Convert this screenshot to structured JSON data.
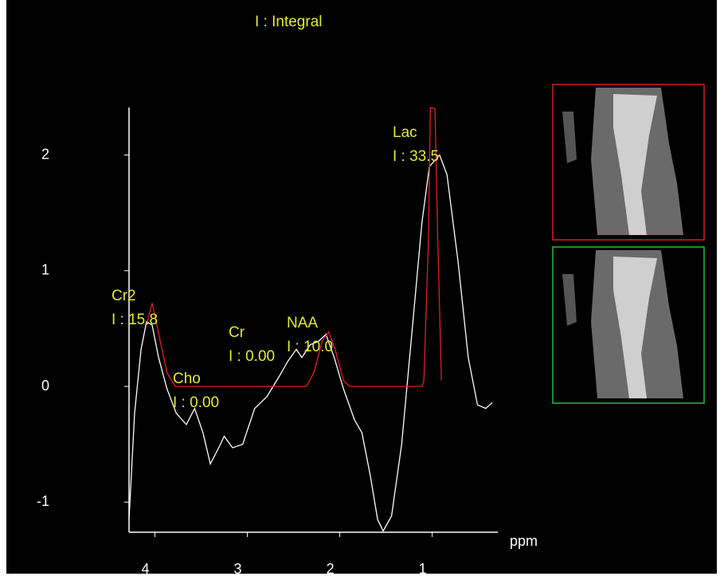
{
  "chart_data": {
    "type": "line",
    "title": "I : Integral",
    "x_label": "ppm",
    "xlim": [
      4.28,
      0.29
    ],
    "ylim": [
      -1.26,
      2.41
    ],
    "xticks": [
      4,
      3,
      2,
      1
    ],
    "yticks": [
      -1,
      0,
      1,
      2
    ],
    "series": [
      {
        "color": "#ffffff",
        "x": [
          4.28,
          4.22,
          4.15,
          4.09,
          4.03,
          3.96,
          3.87,
          3.77,
          3.66,
          3.57,
          3.48,
          3.4,
          3.31,
          3.25,
          3.16,
          3.05,
          2.92,
          2.79,
          2.66,
          2.56,
          2.47,
          2.41,
          2.32,
          2.23,
          2.15,
          2.06,
          1.96,
          1.84,
          1.76,
          1.67,
          1.59,
          1.53,
          1.44,
          1.33,
          1.22,
          1.11,
          1.03,
          0.92,
          0.84,
          0.72,
          0.61,
          0.51,
          0.42,
          0.35
        ],
        "values": [
          -1.15,
          -0.23,
          0.32,
          0.56,
          0.53,
          0.25,
          -0.02,
          -0.23,
          -0.33,
          -0.19,
          -0.4,
          -0.67,
          -0.53,
          -0.43,
          -0.53,
          -0.5,
          -0.19,
          -0.09,
          0.08,
          0.22,
          0.32,
          0.25,
          0.36,
          0.39,
          0.45,
          0.25,
          -0.02,
          -0.29,
          -0.4,
          -0.77,
          -1.15,
          -1.25,
          -1.12,
          -0.5,
          0.46,
          1.42,
          1.9,
          2.0,
          1.83,
          1.08,
          0.25,
          -0.16,
          -0.19,
          -0.14
        ]
      },
      {
        "color": "#e02020",
        "x": [
          4.09,
          4.03,
          3.96,
          3.87,
          3.78,
          2.36,
          2.28,
          2.19,
          2.12,
          2.05,
          1.96,
          1.89,
          1.11,
          1.09,
          1.04,
          1.02,
          0.97,
          0.94,
          0.9
        ],
        "values": [
          0.53,
          0.72,
          0.46,
          0.12,
          0,
          0,
          0.12,
          0.39,
          0.47,
          0.32,
          0.05,
          0,
          0,
          0.05,
          1.28,
          2.41,
          2.4,
          1.28,
          0.05
        ]
      }
    ],
    "annotations": [
      {
        "label": "Cr2",
        "text": "I : 15.8"
      },
      {
        "label": "Cho",
        "text": "I : 0.00"
      },
      {
        "label": "Cr",
        "text": "I : 0.00"
      },
      {
        "label": "NAA",
        "text": "I : 10.0"
      },
      {
        "label": "Lac",
        "text": "I : 33.5"
      }
    ]
  }
}
